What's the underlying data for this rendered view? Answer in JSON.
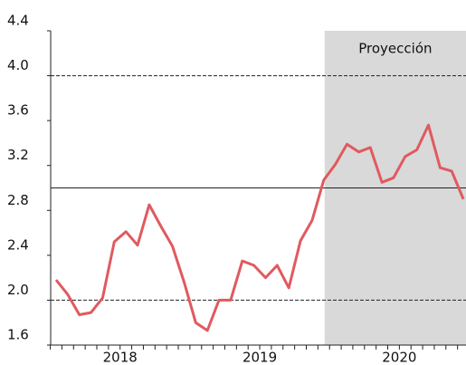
{
  "chart_data": {
    "type": "line",
    "categories": [
      null,
      null,
      null,
      null,
      null,
      null,
      null,
      null,
      null,
      null,
      null,
      null,
      null,
      null,
      null,
      null,
      null,
      null,
      null,
      null,
      null,
      null,
      null,
      null,
      null,
      null,
      null,
      null,
      null,
      null,
      null,
      null,
      null,
      null,
      null,
      null
    ],
    "year_labels": [
      "2018",
      "2019",
      "2020"
    ],
    "series": [
      {
        "color": "#e05a5f",
        "values": [
          2.18,
          2.05,
          1.87,
          1.89,
          2.02,
          2.52,
          2.61,
          2.49,
          2.85,
          2.66,
          2.48,
          2.16,
          1.8,
          1.73,
          2.0,
          2.0,
          2.35,
          2.31,
          2.2,
          2.31,
          2.11,
          2.53,
          2.71,
          3.07,
          3.21,
          3.39,
          3.32,
          3.36,
          3.05,
          3.09,
          3.28,
          3.34,
          3.56,
          3.18,
          3.15,
          2.9
        ]
      }
    ],
    "ylim": [
      1.6,
      4.4
    ],
    "yticks": [
      1.6,
      {
        "value": 2,
        "label": "2.0"
      },
      2.4,
      2.8,
      3.2,
      3.6,
      {
        "value": 4,
        "label": "4.0"
      },
      4.4
    ],
    "reference_lines": [
      {
        "value": 4,
        "style": "dashed"
      },
      {
        "value": 3,
        "style": "solid"
      },
      {
        "value": 2,
        "style": "dashed"
      }
    ],
    "shaded_region": {
      "label": "Proyección",
      "from_index": 23
    }
  }
}
